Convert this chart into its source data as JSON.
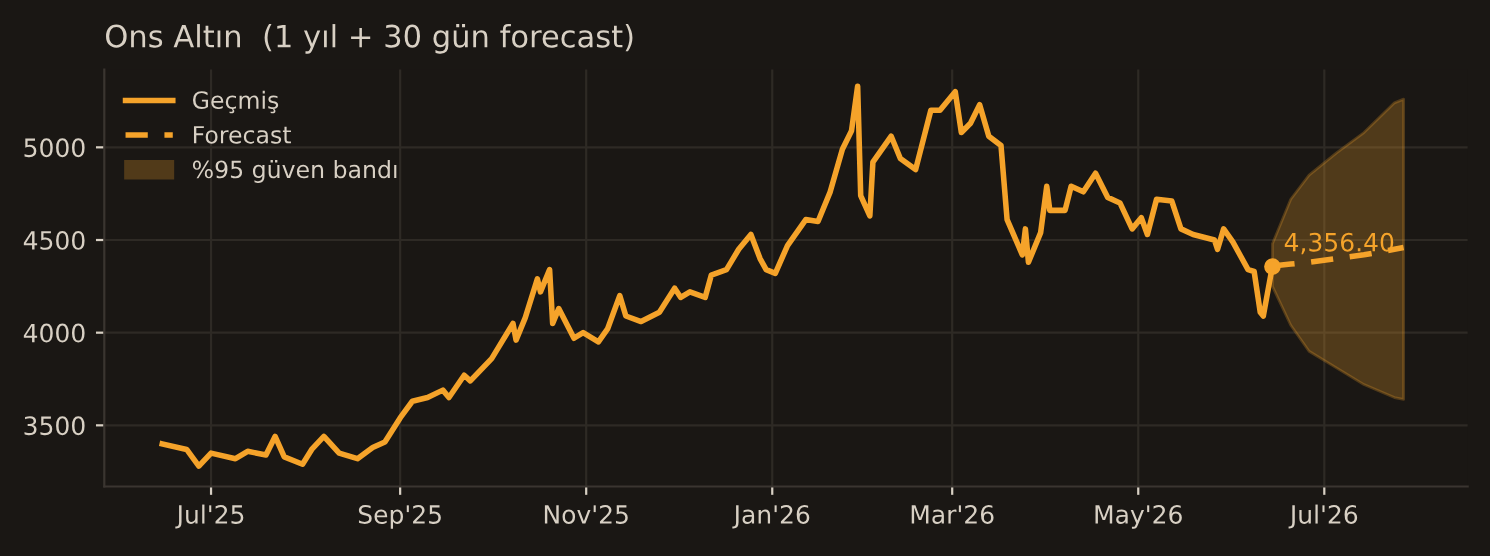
{
  "chart_data": {
    "type": "line",
    "title": "Ons Altın  (1 yıl + 30 gün forecast)",
    "xlim": [
      "2025-05-27",
      "2026-08-17"
    ],
    "xticks": [
      {
        "value": "2025-07-01",
        "label": "Jul'25"
      },
      {
        "value": "2025-09-01",
        "label": "Sep'25"
      },
      {
        "value": "2025-11-01",
        "label": "Nov'25"
      },
      {
        "value": "2026-01-01",
        "label": "Jan'26"
      },
      {
        "value": "2026-03-01",
        "label": "Mar'26"
      },
      {
        "value": "2026-05-01",
        "label": "May'26"
      },
      {
        "value": "2026-07-01",
        "label": "Jul'26"
      }
    ],
    "ylim": [
      3170,
      5420
    ],
    "yticks": [
      3500,
      4000,
      4500,
      5000
    ],
    "grid": true,
    "legend": "top left",
    "series": [
      {
        "name": "Geçmiş",
        "line_style": "solid",
        "color": "#f5a32a",
        "x": [
          "2025-06-15",
          "2025-06-23",
          "2025-06-27",
          "2025-07-01",
          "2025-07-09",
          "2025-07-13",
          "2025-07-19",
          "2025-07-22",
          "2025-07-25",
          "2025-07-31",
          "2025-08-03",
          "2025-08-07",
          "2025-08-12",
          "2025-08-18",
          "2025-08-23",
          "2025-08-27",
          "2025-09-01",
          "2025-09-05",
          "2025-09-10",
          "2025-09-15",
          "2025-09-17",
          "2025-09-22",
          "2025-09-24",
          "2025-10-01",
          "2025-10-08",
          "2025-10-09",
          "2025-10-12",
          "2025-10-16",
          "2025-10-17",
          "2025-10-20",
          "2025-10-21",
          "2025-10-23",
          "2025-10-28",
          "2025-10-31",
          "2025-11-05",
          "2025-11-08",
          "2025-11-12",
          "2025-11-14",
          "2025-11-19",
          "2025-11-25",
          "2025-11-30",
          "2025-12-02",
          "2025-12-05",
          "2025-12-10",
          "2025-12-12",
          "2025-12-17",
          "2025-12-21",
          "2025-12-25",
          "2025-12-28",
          "2025-12-30",
          "2026-01-02",
          "2026-01-06",
          "2026-01-12",
          "2026-01-16",
          "2026-01-20",
          "2026-01-24",
          "2026-01-27",
          "2026-01-29",
          "2026-01-30",
          "2026-02-02",
          "2026-02-03",
          "2026-02-09",
          "2026-02-12",
          "2026-02-17",
          "2026-02-22",
          "2026-02-25",
          "2026-03-02",
          "2026-03-04",
          "2026-03-07",
          "2026-03-10",
          "2026-03-13",
          "2026-03-17",
          "2026-03-19",
          "2026-03-24",
          "2026-03-25",
          "2026-03-26",
          "2026-03-30",
          "2026-04-01",
          "2026-04-02",
          "2026-04-07",
          "2026-04-09",
          "2026-04-13",
          "2026-04-17",
          "2026-04-21",
          "2026-04-25",
          "2026-04-29",
          "2026-05-02",
          "2026-05-04",
          "2026-05-07",
          "2026-05-12",
          "2026-05-15",
          "2026-05-19",
          "2026-05-26",
          "2026-05-27",
          "2026-05-29",
          "2026-06-01",
          "2026-06-06",
          "2026-06-08",
          "2026-06-10",
          "2026-06-11",
          "2026-06-14"
        ],
        "values": [
          3400,
          3370,
          3280,
          3350,
          3320,
          3360,
          3340,
          3440,
          3330,
          3290,
          3370,
          3440,
          3350,
          3320,
          3380,
          3410,
          3540,
          3630,
          3650,
          3690,
          3650,
          3770,
          3740,
          3860,
          4050,
          3960,
          4080,
          4290,
          4220,
          4340,
          4050,
          4130,
          3970,
          4000,
          3950,
          4020,
          4200,
          4090,
          4060,
          4110,
          4240,
          4190,
          4220,
          4190,
          4310,
          4340,
          4450,
          4530,
          4400,
          4340,
          4320,
          4470,
          4610,
          4600,
          4760,
          4990,
          5090,
          5330,
          4740,
          4630,
          4920,
          5060,
          4940,
          4880,
          5200,
          5200,
          5300,
          5080,
          5130,
          5230,
          5060,
          5010,
          4610,
          4420,
          4560,
          4380,
          4540,
          4790,
          4660,
          4660,
          4790,
          4760,
          4860,
          4730,
          4700,
          4560,
          4620,
          4530,
          4720,
          4710,
          4560,
          4530,
          4500,
          4450,
          4560,
          4490,
          4340,
          4330,
          4110,
          4090,
          4360
        ]
      },
      {
        "name": "Forecast",
        "line_style": "dashed",
        "color": "#f5a32a",
        "x": [
          "2026-06-14",
          "2026-06-20",
          "2026-06-26",
          "2026-07-05",
          "2026-07-14",
          "2026-07-24",
          "2026-07-27"
        ],
        "values": [
          4360,
          4370,
          4380,
          4400,
          4420,
          4450,
          4460
        ],
        "upper": [
          4480,
          4720,
          4850,
          4970,
          5080,
          5240,
          5260
        ],
        "lower": [
          4250,
          4040,
          3900,
          3810,
          3720,
          3650,
          3640
        ]
      }
    ],
    "annotations": [
      {
        "text": "4,356.40",
        "x": "2026-06-14",
        "y": 4356.4
      },
      "%95 güven bandı"
    ]
  }
}
